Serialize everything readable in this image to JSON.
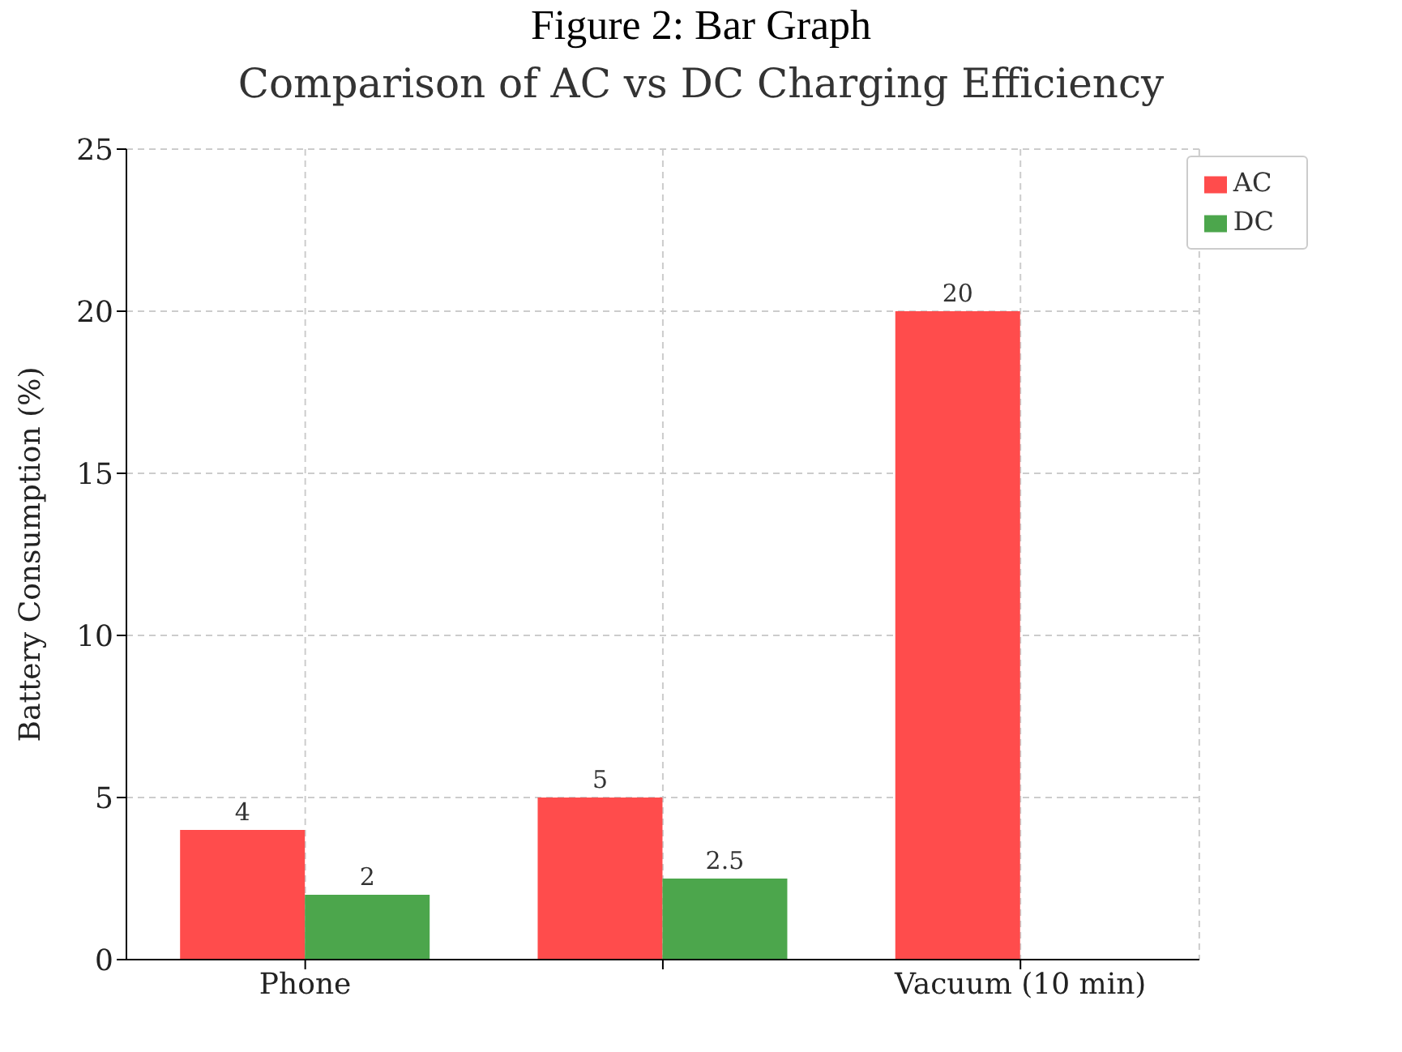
{
  "chart_data": {
    "type": "bar",
    "title": "Figure 2: Bar Graph",
    "subtitle": "Comparison of AC vs DC Charging Efficiency",
    "ylabel": "Battery Consumption (%)",
    "categories": [
      "Phone",
      null,
      "Vacuum (10 min)"
    ],
    "series": [
      {
        "name": "AC",
        "color": "#ff4c4c",
        "values": [
          4,
          5,
          20
        ]
      },
      {
        "name": "DC",
        "color": "#4ca64c",
        "values": [
          2,
          2.5,
          null
        ]
      }
    ],
    "ylim": [
      0,
      25
    ],
    "yticks": [
      0,
      5,
      10,
      15,
      20,
      25
    ],
    "grid": true,
    "legend": "top right",
    "data_labels": true
  }
}
